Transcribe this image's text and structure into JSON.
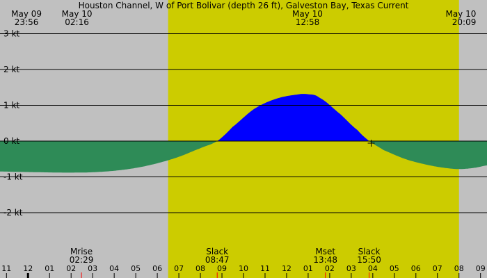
{
  "chart_data": {
    "type": "area",
    "title": "Houston Channel, W of Port Bolivar (depth 26 ft), Galveston Bay, Texas Current",
    "unit": "kt",
    "x_unit": "hour",
    "xlim": [
      10.7,
      33.3
    ],
    "ylim": [
      -3.05,
      3.05
    ],
    "y_ticks": [
      {
        "value": 3,
        "label": "3 kt"
      },
      {
        "value": 2,
        "label": "2 kt"
      },
      {
        "value": 1,
        "label": "1 kt"
      },
      {
        "value": 0,
        "label": "0 kt"
      },
      {
        "value": -1,
        "label": "-1 kt"
      },
      {
        "value": -2,
        "label": "-2 kt"
      }
    ],
    "hour_ticks": [
      {
        "x": 11,
        "label": "11"
      },
      {
        "x": 12,
        "label": "12"
      },
      {
        "x": 13,
        "label": "01"
      },
      {
        "x": 14,
        "label": "02"
      },
      {
        "x": 15,
        "label": "03"
      },
      {
        "x": 16,
        "label": "04"
      },
      {
        "x": 17,
        "label": "05"
      },
      {
        "x": 18,
        "label": "06"
      },
      {
        "x": 19,
        "label": "07"
      },
      {
        "x": 20,
        "label": "08"
      },
      {
        "x": 21,
        "label": "09"
      },
      {
        "x": 22,
        "label": "10"
      },
      {
        "x": 23,
        "label": "11"
      },
      {
        "x": 24,
        "label": "12"
      },
      {
        "x": 25,
        "label": "01"
      },
      {
        "x": 26,
        "label": "02"
      },
      {
        "x": 27,
        "label": "03"
      },
      {
        "x": 28,
        "label": "04"
      },
      {
        "x": 29,
        "label": "05"
      },
      {
        "x": 30,
        "label": "06"
      },
      {
        "x": 31,
        "label": "07"
      },
      {
        "x": 32,
        "label": "08"
      },
      {
        "x": 33,
        "label": "09"
      }
    ],
    "daylight": [
      18.5,
      32.0
    ],
    "top_events": [
      {
        "x": 11.93,
        "date": "May 09",
        "time": "23:56"
      },
      {
        "x": 14.27,
        "date": "May 10",
        "time": "02:16"
      },
      {
        "x": 24.97,
        "date": "May 10",
        "time": "12:58"
      },
      {
        "x": 32.15,
        "date": "May 10",
        "time": "20:09"
      }
    ],
    "bottom_events": [
      {
        "x": 14.48,
        "name": "Mrise",
        "time": "02:29"
      },
      {
        "x": 20.78,
        "name": "Slack",
        "time": "08:47"
      },
      {
        "x": 25.8,
        "name": "Mset",
        "time": "13:48"
      },
      {
        "x": 27.83,
        "name": "Slack",
        "time": "15:50"
      }
    ],
    "current": {
      "x": [
        10.7,
        11.5,
        12.5,
        13.5,
        14.27,
        15.0,
        16.0,
        17.0,
        18.0,
        19.0,
        20.0,
        20.78,
        21.5,
        22.5,
        23.5,
        24.5,
        24.97,
        25.5,
        26.5,
        27.3,
        27.83,
        28.5,
        29.5,
        30.5,
        31.5,
        32.15,
        32.8,
        33.3
      ],
      "y": [
        -0.85,
        -0.86,
        -0.87,
        -0.88,
        -0.88,
        -0.87,
        -0.83,
        -0.75,
        -0.62,
        -0.44,
        -0.2,
        0.0,
        0.4,
        0.9,
        1.18,
        1.3,
        1.31,
        1.22,
        0.75,
        0.3,
        0.0,
        -0.25,
        -0.5,
        -0.66,
        -0.76,
        -0.78,
        -0.74,
        -0.68
      ]
    }
  }
}
